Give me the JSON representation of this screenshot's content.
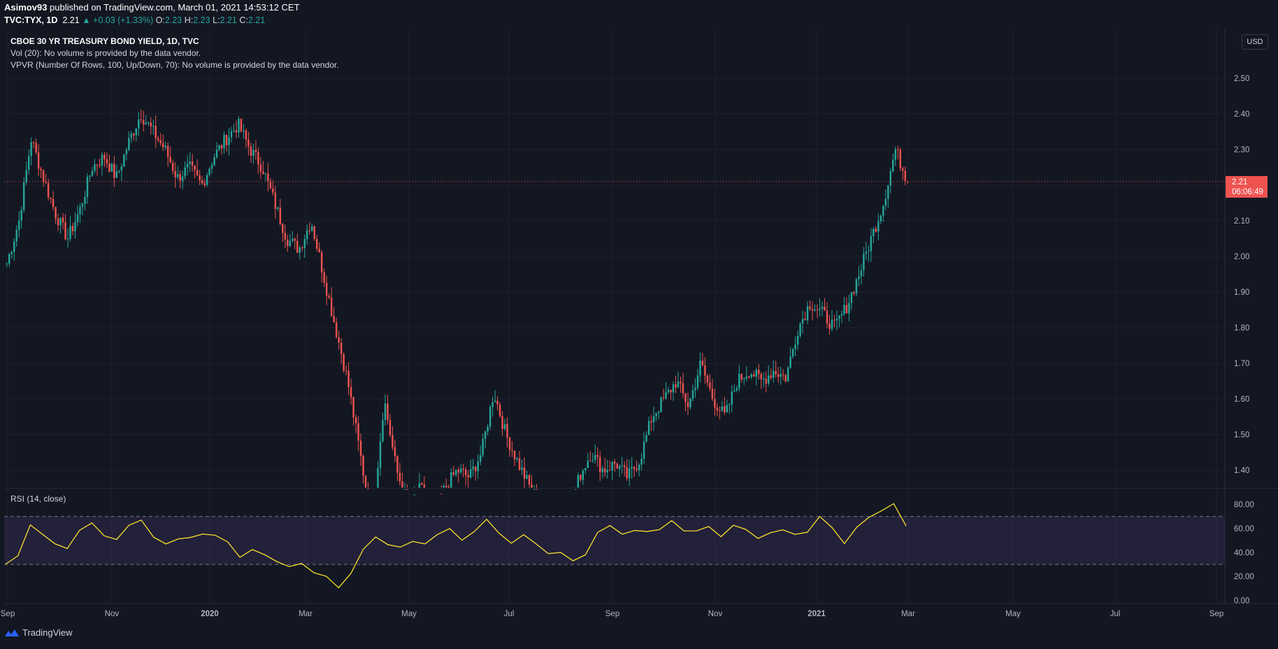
{
  "header": {
    "author": "Asimov93",
    "published_text": "published on TradingView.com, March 01, 2021 14:53:12 CET",
    "symbol": "TVC:TYX, 1D",
    "last": "2.21",
    "change": "+0.03 (+1.33%)",
    "o_label": "O:",
    "o": "2.23",
    "h_label": "H:",
    "h": "2.23",
    "l_label": "L:",
    "l": "2.21",
    "c_label": "C:",
    "c": "2.21"
  },
  "legend": {
    "title": "CBOE 30 YR TREASURY BOND YIELD, 1D, TVC",
    "vol": "Vol (20): No volume is provided by the data vendor.",
    "vpvr": "VPVR (Number Of Rows, 100, Up/Down, 70): No volume is provided by the data vendor."
  },
  "currency": "USD",
  "price_tag": {
    "price": "2.21",
    "countdown": "06:06:49"
  },
  "rsi_label": "RSI (14, close)",
  "footer": {
    "brand": "TradingView"
  },
  "colors": {
    "background": "#131722",
    "up": "#26a69a",
    "down": "#ef5350",
    "rsi": "#f7e12c",
    "rsi_band": "#7e57c2"
  },
  "chart_data": [
    {
      "type": "candlestick",
      "title": "CBOE 30 YR TREASURY BOND YIELD, 1D, TVC",
      "ylim": [
        1.32,
        2.53
      ],
      "y_ticks": [
        "1.40",
        "1.50",
        "1.60",
        "1.70",
        "1.80",
        "1.90",
        "2.00",
        "2.10",
        "2.20",
        "2.30",
        "2.40",
        "2.50"
      ],
      "x_ticks": [
        "Sep",
        "Nov",
        "2020",
        "Mar",
        "May",
        "Jul",
        "Sep",
        "Nov",
        "2021",
        "Mar",
        "May",
        "Jul",
        "Sep"
      ],
      "last_price": 2.21,
      "grid": true,
      "series_close_keypoints": [
        {
          "x": "Sep",
          "y": 1.98
        },
        {
          "x": "Sep",
          "y": 2.1
        },
        {
          "x": "Sep",
          "y": 2.33
        },
        {
          "x": "Sep",
          "y": 2.22
        },
        {
          "x": "Sep",
          "y": 2.12
        },
        {
          "x": "Oct",
          "y": 2.05
        },
        {
          "x": "Oct",
          "y": 2.13
        },
        {
          "x": "Oct",
          "y": 2.25
        },
        {
          "x": "Oct",
          "y": 2.28
        },
        {
          "x": "Oct",
          "y": 2.22
        },
        {
          "x": "Oct",
          "y": 2.32
        },
        {
          "x": "Nov",
          "y": 2.4
        },
        {
          "x": "Nov",
          "y": 2.35
        },
        {
          "x": "Nov",
          "y": 2.3
        },
        {
          "x": "Nov",
          "y": 2.22
        },
        {
          "x": "Dec",
          "y": 2.25
        },
        {
          "x": "Dec",
          "y": 2.2
        },
        {
          "x": "Dec",
          "y": 2.28
        },
        {
          "x": "Dec",
          "y": 2.33
        },
        {
          "x": "2020",
          "y": 2.37
        },
        {
          "x": "2020",
          "y": 2.3
        },
        {
          "x": "Jan",
          "y": 2.25
        },
        {
          "x": "Jan",
          "y": 2.15
        },
        {
          "x": "Feb",
          "y": 2.05
        },
        {
          "x": "Feb",
          "y": 2.02
        },
        {
          "x": "Feb",
          "y": 2.1
        },
        {
          "x": "Feb",
          "y": 1.95
        },
        {
          "x": "Mar",
          "y": 1.8
        },
        {
          "x": "Mar",
          "y": 1.65
        },
        {
          "x": "Mar",
          "y": 1.45
        },
        {
          "x": "Mar",
          "y": 1.25
        },
        {
          "x": "Mar",
          "y": 1.6
        },
        {
          "x": "Mar",
          "y": 1.4
        },
        {
          "x": "Apr",
          "y": 1.3
        },
        {
          "x": "Apr",
          "y": 1.35
        },
        {
          "x": "Apr",
          "y": 1.28
        },
        {
          "x": "May",
          "y": 1.35
        },
        {
          "x": "May",
          "y": 1.4
        },
        {
          "x": "May",
          "y": 1.38
        },
        {
          "x": "Jun",
          "y": 1.45
        },
        {
          "x": "Jun",
          "y": 1.62
        },
        {
          "x": "Jun",
          "y": 1.5
        },
        {
          "x": "Jun",
          "y": 1.42
        },
        {
          "x": "Jul",
          "y": 1.35
        },
        {
          "x": "Jul",
          "y": 1.3
        },
        {
          "x": "Jul",
          "y": 1.28
        },
        {
          "x": "Aug",
          "y": 1.25
        },
        {
          "x": "Aug",
          "y": 1.38
        },
        {
          "x": "Aug",
          "y": 1.45
        },
        {
          "x": "Aug",
          "y": 1.4
        },
        {
          "x": "Sep",
          "y": 1.42
        },
        {
          "x": "Sep",
          "y": 1.38
        },
        {
          "x": "Sep",
          "y": 1.43
        },
        {
          "x": "Oct",
          "y": 1.55
        },
        {
          "x": "Oct",
          "y": 1.6
        },
        {
          "x": "Oct",
          "y": 1.65
        },
        {
          "x": "Oct",
          "y": 1.58
        },
        {
          "x": "Nov",
          "y": 1.7
        },
        {
          "x": "Nov",
          "y": 1.6
        },
        {
          "x": "Nov",
          "y": 1.55
        },
        {
          "x": "Nov",
          "y": 1.65
        },
        {
          "x": "Dec",
          "y": 1.68
        },
        {
          "x": "Dec",
          "y": 1.65
        },
        {
          "x": "Dec",
          "y": 1.68
        },
        {
          "x": "2021",
          "y": 1.66
        },
        {
          "x": "2021",
          "y": 1.8
        },
        {
          "x": "Jan",
          "y": 1.87
        },
        {
          "x": "Jan",
          "y": 1.84
        },
        {
          "x": "Jan",
          "y": 1.8
        },
        {
          "x": "Feb",
          "y": 1.86
        },
        {
          "x": "Feb",
          "y": 1.95
        },
        {
          "x": "Feb",
          "y": 2.05
        },
        {
          "x": "Feb",
          "y": 2.15
        },
        {
          "x": "Feb",
          "y": 2.3
        },
        {
          "x": "Feb",
          "y": 2.21
        }
      ]
    },
    {
      "type": "line",
      "title": "RSI (14, close)",
      "ylim": [
        0,
        85
      ],
      "y_ticks": [
        "0.00",
        "20.00",
        "40.00",
        "60.00",
        "80.00"
      ],
      "bands": [
        30,
        70
      ],
      "series": [
        {
          "values": [
            33,
            40,
            60,
            55,
            48,
            45,
            60,
            65,
            55,
            50,
            62,
            66,
            55,
            48,
            50,
            55,
            58,
            52,
            46,
            38,
            42,
            40,
            35,
            30,
            33,
            25,
            22,
            12,
            20,
            40,
            50,
            45,
            42,
            48,
            50,
            55,
            58,
            52,
            60,
            66,
            55,
            50,
            52,
            45,
            42,
            38,
            35,
            40,
            55,
            65,
            58,
            60,
            55,
            62,
            66,
            60,
            58,
            63,
            55,
            60,
            58,
            52,
            55,
            60,
            56,
            58,
            70,
            62,
            50,
            60,
            68,
            75,
            82,
            65
          ]
        }
      ]
    }
  ]
}
